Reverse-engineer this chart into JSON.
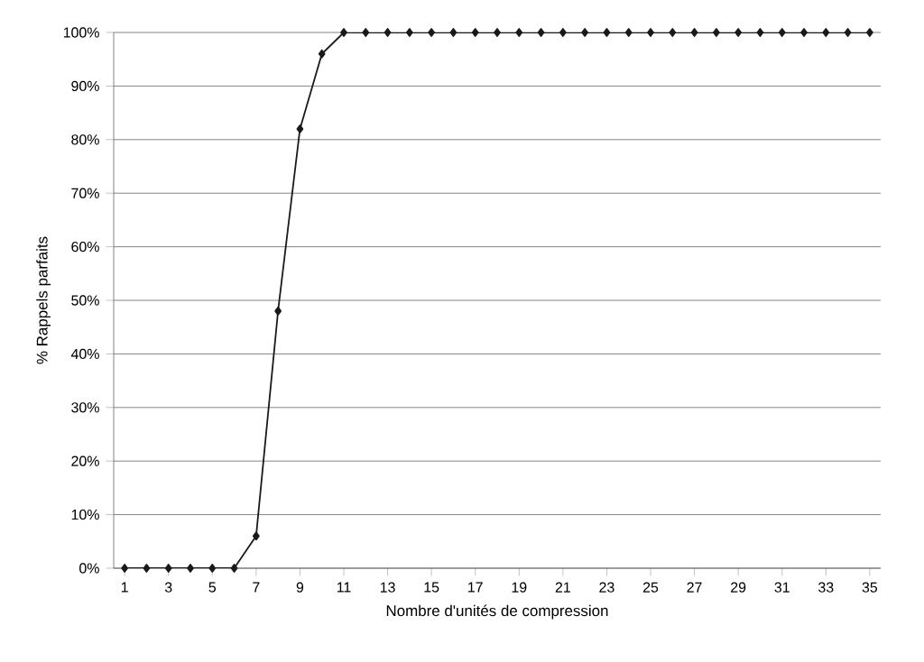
{
  "chart_data": {
    "type": "line",
    "xlabel": "Nombre d'unités de compression",
    "ylabel": "% Rappels parfaits",
    "categories": [
      "1",
      null,
      "3",
      null,
      "5",
      null,
      "7",
      null,
      "9",
      null,
      "11",
      null,
      "13",
      null,
      "15",
      null,
      "17",
      null,
      "19",
      null,
      "21",
      null,
      "23",
      null,
      "25",
      null,
      "27",
      null,
      "29",
      null,
      "31",
      null,
      "33",
      null,
      "35"
    ],
    "series": [
      {
        "color": "#1a1a1a",
        "values": [
          0,
          0,
          0,
          0,
          0,
          0,
          6,
          48,
          82,
          96,
          100,
          100,
          100,
          100,
          100,
          100,
          100,
          100,
          100,
          100,
          100,
          100,
          100,
          100,
          100,
          100,
          100,
          100,
          100,
          100,
          100,
          100,
          100,
          100,
          100
        ]
      }
    ],
    "ylim": [
      0,
      100
    ],
    "yticks": [
      {
        "value": 0,
        "label": "0%"
      },
      {
        "value": 10,
        "label": "10%"
      },
      {
        "value": 20,
        "label": "20%"
      },
      {
        "value": 30,
        "label": "30%"
      },
      {
        "value": 40,
        "label": "40%"
      },
      {
        "value": 50,
        "label": "50%"
      },
      {
        "value": 60,
        "label": "60%"
      },
      {
        "value": 70,
        "label": "70%"
      },
      {
        "value": 80,
        "label": "80%"
      },
      {
        "value": 90,
        "label": "90%"
      },
      {
        "value": 100,
        "label": "100%"
      }
    ],
    "grid": "y",
    "marker": "diamond",
    "line_style": "solid"
  }
}
